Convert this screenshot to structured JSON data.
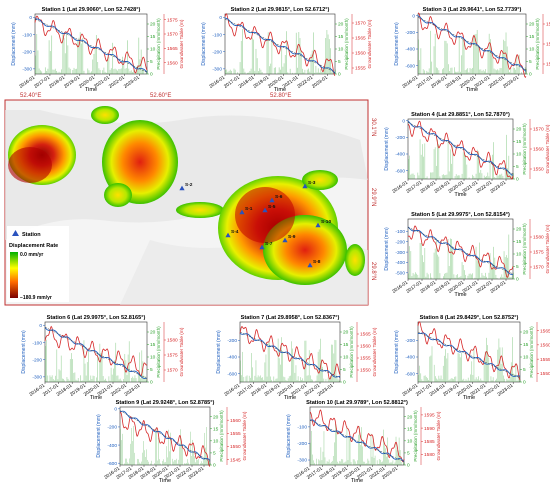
{
  "map": {
    "lon_labels": [
      "52.40°E",
      "52.60°E",
      "52.80°E"
    ],
    "lat_labels": [
      "30.1°N",
      "29.9°N",
      "29.8°N"
    ],
    "legend": {
      "station_label": "Station",
      "title": "Displacement Rate",
      "max_label": "0.0  mm/yr",
      "min_label": "−180.9  mm/yr"
    },
    "colors": {
      "high": "#00b000",
      "mid": "#ffff00",
      "low": "#b00000",
      "station": "#2a52be"
    },
    "stations": [
      {
        "label": "S-1"
      },
      {
        "label": "S-2"
      },
      {
        "label": "S-3"
      },
      {
        "label": "S-4"
      },
      {
        "label": "S-5"
      },
      {
        "label": "S-6"
      },
      {
        "label": "S-7"
      },
      {
        "label": "S-8"
      },
      {
        "label": "S-9"
      },
      {
        "label": "S-10"
      }
    ]
  },
  "axis_labels": {
    "x": "Time",
    "y_left": "Displacement (mm)",
    "y_mid": "Precipitation (mm/month)",
    "y_right": "Groundwater Table (m)"
  },
  "time_ticks": [
    "2016-01",
    "2017-01",
    "2018-01",
    "2019-01",
    "2020-01",
    "2021-01",
    "2022-01",
    "2023-01"
  ],
  "colors": {
    "displacement": "#1f5fbf",
    "groundwater": "#d62728",
    "precip": "#2ca02c",
    "trend": "#333333"
  },
  "chart_data": [
    {
      "type": "line",
      "title": "Station 1  (Lat 29.9060°, Lon 52.7428°)",
      "xlim": [
        2016,
        2023.5
      ],
      "disp_ylim": [
        -330,
        20
      ],
      "disp_ticks": [
        -300,
        -200,
        -100,
        0
      ],
      "precip_ylim": [
        0,
        24
      ],
      "precip_ticks": [
        0,
        5,
        10,
        15,
        20
      ],
      "gw_ylim": [
        1556,
        1577
      ],
      "gw_ticks": [
        1560,
        1565,
        1570,
        1575
      ],
      "disp_start": -10,
      "disp_end": -320,
      "gw_start": 1574,
      "gw_end": 1558
    },
    {
      "type": "line",
      "title": "Station 2  (Lat 29.9815°, Lon 52.6712°)",
      "xlim": [
        2016,
        2023.5
      ],
      "disp_ylim": [
        -330,
        20
      ],
      "disp_ticks": [
        -300,
        -200,
        -100,
        0
      ],
      "precip_ylim": [
        0,
        24
      ],
      "precip_ticks": [
        0,
        5,
        10,
        15,
        20
      ],
      "gw_ylim": [
        1553,
        1573
      ],
      "gw_ticks": [
        1555,
        1560,
        1565,
        1570
      ],
      "disp_start": -10,
      "disp_end": -320,
      "gw_start": 1570,
      "gw_end": 1555
    },
    {
      "type": "line",
      "title": "Station 3  (Lat 29.9641°, Lon 52.7739°)",
      "xlim": [
        2016,
        2023.5
      ],
      "disp_ylim": [
        -700,
        20
      ],
      "disp_ticks": [
        -600,
        -400,
        -200,
        0
      ],
      "precip_ylim": [
        0,
        24
      ],
      "precip_ticks": [
        0,
        5,
        10,
        15,
        20
      ],
      "gw_ylim": [
        1545,
        1575
      ],
      "gw_ticks": [
        1550,
        1560,
        1570
      ],
      "disp_start": -20,
      "disp_end": -650,
      "gw_start": 1572,
      "gw_end": 1548
    },
    {
      "type": "line",
      "title": "Station 4  (Lat 29.8851°, Lon 52.7870°)",
      "xlim": [
        2016,
        2023.5
      ],
      "disp_ylim": [
        -700,
        20
      ],
      "disp_ticks": [
        -600,
        -400,
        -200,
        0
      ],
      "precip_ylim": [
        0,
        24
      ],
      "precip_ticks": [
        0,
        5,
        10,
        15,
        20
      ],
      "gw_ylim": [
        1545,
        1575
      ],
      "gw_ticks": [
        1550,
        1560,
        1570
      ],
      "disp_start": -20,
      "disp_end": -640,
      "gw_start": 1572,
      "gw_end": 1548
    },
    {
      "type": "line",
      "title": "Station 5  (Lat 29.9975°, Lon 52.8154°)",
      "xlim": [
        2016,
        2023.5
      ],
      "disp_ylim": [
        -560,
        20
      ],
      "disp_ticks": [
        -500,
        -400,
        -300,
        -200,
        -100
      ],
      "precip_ylim": [
        0,
        24
      ],
      "precip_ticks": [
        0,
        5,
        10,
        15,
        20
      ],
      "gw_ylim": [
        1566,
        1586
      ],
      "gw_ticks": [
        1570,
        1575,
        1580
      ],
      "disp_start": -60,
      "disp_end": -510,
      "gw_start": 1582,
      "gw_end": 1569
    },
    {
      "type": "line",
      "title": "Station 6  (Lat 29.9975°, Lon 52.8165°)",
      "xlim": [
        2016,
        2023.5
      ],
      "disp_ylim": [
        -330,
        20
      ],
      "disp_ticks": [
        -300,
        -200,
        -100,
        0
      ],
      "precip_ylim": [
        0,
        24
      ],
      "precip_ticks": [
        0,
        5,
        10,
        15,
        20
      ],
      "gw_ylim": [
        1566,
        1586
      ],
      "gw_ticks": [
        1570,
        1575,
        1580
      ],
      "disp_start": -10,
      "disp_end": -310,
      "gw_start": 1582,
      "gw_end": 1570
    },
    {
      "type": "line",
      "title": "Station 7  (Lat 29.8958°, Lon 52.8367°)",
      "xlim": [
        2016,
        2023.5
      ],
      "disp_ylim": [
        -700,
        20
      ],
      "disp_ticks": [
        -600,
        -400,
        -200
      ],
      "precip_ylim": [
        0,
        24
      ],
      "precip_ticks": [
        0,
        5,
        10,
        15,
        20
      ],
      "gw_ylim": [
        1545,
        1570
      ],
      "gw_ticks": [
        1550,
        1555,
        1560,
        1565
      ],
      "disp_start": -100,
      "disp_end": -650,
      "gw_start": 1566,
      "gw_end": 1548
    },
    {
      "type": "line",
      "title": "Station 8  (Lat 29.8429°, Lon 52.8752°)",
      "xlim": [
        2016,
        2023.5
      ],
      "disp_ylim": [
        -700,
        20
      ],
      "disp_ticks": [
        -600,
        -400,
        -200
      ],
      "precip_ylim": [
        0,
        24
      ],
      "precip_ticks": [
        0,
        5,
        10,
        15,
        20
      ],
      "gw_ylim": [
        1547,
        1568
      ],
      "gw_ticks": [
        1550,
        1555,
        1560,
        1565
      ],
      "disp_start": -100,
      "disp_end": -650,
      "gw_start": 1565,
      "gw_end": 1550
    },
    {
      "type": "line",
      "title": "Station 9  (Lat 29.9248°, Lon 52.8785°)",
      "xlim": [
        2016,
        2023.5
      ],
      "disp_ylim": [
        -620,
        20
      ],
      "disp_ticks": [
        -600,
        -400,
        -200,
        0
      ],
      "precip_ylim": [
        0,
        24
      ],
      "precip_ticks": [
        0,
        5,
        10,
        15,
        20
      ],
      "gw_ylim": [
        1543,
        1565
      ],
      "gw_ticks": [
        1545,
        1550,
        1555,
        1560
      ],
      "disp_start": -20,
      "disp_end": -580,
      "gw_start": 1560,
      "gw_end": 1546
    },
    {
      "type": "line",
      "title": "Station 10  (Lat 29.9789°, Lon 52.8812°)",
      "xlim": [
        2016,
        2023.5
      ],
      "disp_ylim": [
        -330,
        20
      ],
      "disp_ticks": [
        -300,
        -200,
        -100
      ],
      "precip_ylim": [
        0,
        24
      ],
      "precip_ticks": [
        0,
        5,
        10,
        15,
        20
      ],
      "gw_ylim": [
        1576,
        1598
      ],
      "gw_ticks": [
        1580,
        1585,
        1590,
        1595
      ],
      "disp_start": -60,
      "disp_end": -310,
      "gw_start": 1595,
      "gw_end": 1580
    }
  ]
}
